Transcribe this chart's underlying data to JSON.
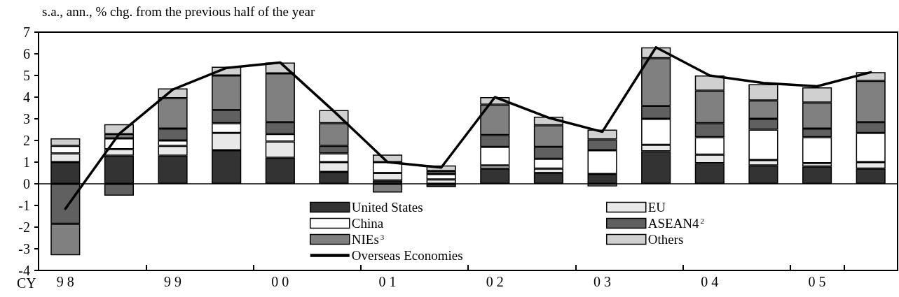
{
  "chart_data": {
    "type": "bar",
    "title": "s.a., ann., % chg. from the previous half of the year",
    "categories": [
      "9 8",
      null,
      "9 9",
      null,
      "0 0",
      null,
      "0 1",
      null,
      "0 2",
      null,
      "0 3",
      null,
      "0 4",
      null,
      "0 5",
      null
    ],
    "stacked": true,
    "series": [
      {
        "name": "United States",
        "color": "#333333",
        "values": [
          1.0,
          1.3,
          1.3,
          1.55,
          1.2,
          0.55,
          0.15,
          -0.15,
          0.7,
          0.5,
          0.45,
          1.5,
          0.95,
          0.85,
          0.8,
          0.7
        ]
      },
      {
        "name": "EU",
        "color": "#e8e8e8",
        "values": [
          0.4,
          0.3,
          0.45,
          0.8,
          0.75,
          0.45,
          0.35,
          0.2,
          0.15,
          0.2,
          -0.12,
          0.3,
          0.4,
          0.25,
          0.15,
          0.3
        ]
      },
      {
        "name": "China",
        "color": "#ffffff",
        "values": [
          0.35,
          0.5,
          0.25,
          0.45,
          0.35,
          0.4,
          0.5,
          0.25,
          0.85,
          0.45,
          1.1,
          1.2,
          0.8,
          1.4,
          1.2,
          1.35
        ]
      },
      {
        "name": "ASEAN4$^{2}$",
        "color": "#606060",
        "values": [
          -1.85,
          -0.55,
          0.55,
          0.6,
          0.55,
          0.35,
          null,
          0.15,
          0.55,
          0.55,
          0.5,
          0.6,
          0.65,
          0.5,
          0.4,
          0.5
        ]
      },
      {
        "name": "NIEs$^{3}$",
        "color": "#808080",
        "values": [
          -1.45,
          0.2,
          1.4,
          1.6,
          2.25,
          1.05,
          -0.4,
          null,
          1.4,
          1.0,
          null,
          2.2,
          1.5,
          0.85,
          1.2,
          1.9
        ]
      },
      {
        "name": "Others",
        "color": "#d0d0d0",
        "values": [
          0.35,
          0.45,
          0.45,
          0.4,
          0.5,
          0.6,
          0.35,
          0.25,
          0.35,
          0.4,
          0.45,
          0.5,
          0.7,
          0.75,
          0.7,
          0.4
        ]
      },
      {
        "name": "Overseas Economies",
        "type": "line",
        "color": "#000000",
        "values": [
          -1.15,
          2.3,
          4.35,
          5.35,
          5.6,
          3.35,
          1.0,
          0.75,
          4.0,
          3.05,
          2.4,
          6.3,
          5.0,
          4.65,
          4.5,
          5.15
        ]
      }
    ],
    "ylim": [
      -4,
      7
    ],
    "yticks": [
      -4,
      -3,
      -2,
      -1,
      0,
      1,
      2,
      3,
      4,
      5,
      6,
      7
    ],
    "ref_lines": [
      {
        "axis": "y",
        "value": 0
      }
    ],
    "annotations": [
      "CY"
    ],
    "marker": "none",
    "line_style": "solid",
    "legend": "bottom",
    "grid": false
  }
}
